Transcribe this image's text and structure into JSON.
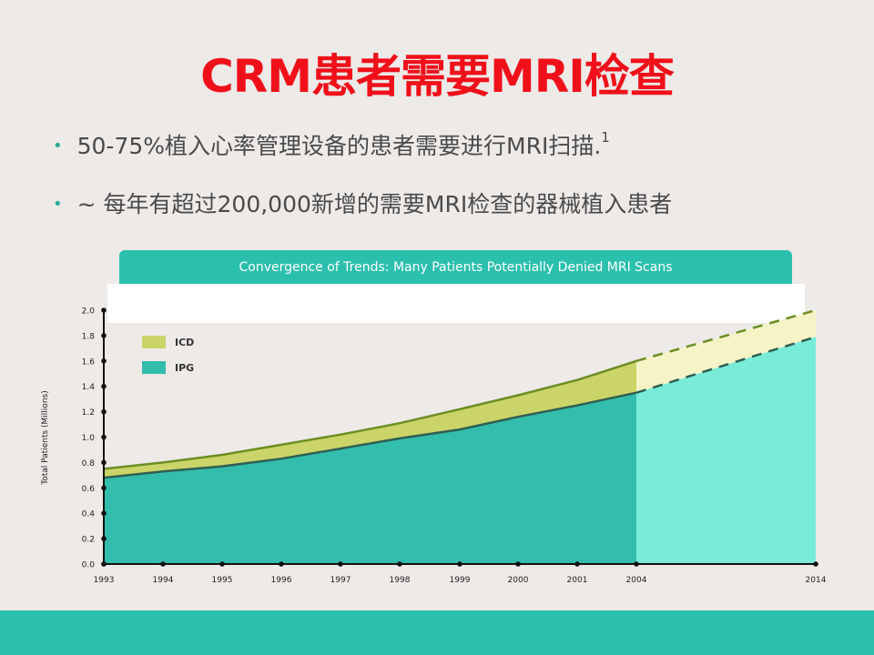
{
  "slide": {
    "title": "CRM患者需要MRI检查",
    "bullets": [
      {
        "text": "50-75%植入心率管理设备的患者需要进行MRI扫描.",
        "sup": "1"
      },
      {
        "text": "~ 每年有超过200,000新增的需要MRI检查的器械植入患者",
        "sup": ""
      }
    ]
  },
  "colors": {
    "title": "#f0101a",
    "accent": "#2bbfad",
    "ipg_actual": "#33bdac",
    "ipg_projected": "#78ecd8",
    "icd_actual": "#cbd468",
    "icd_projected": "#f6f4c7",
    "icd_line": "#6b8e23",
    "ipg_line": "#2f5f53"
  },
  "chart_data": {
    "type": "area",
    "title": "Convergence of Trends: Many Patients Potentially Denied MRI Scans",
    "ylabel": "Total Patients (Millions)",
    "xlabel": "",
    "ylim": [
      0,
      2.0
    ],
    "y_ticks": [
      "0.0",
      "0.2",
      "0.4",
      "0.6",
      "0.8",
      "1.0",
      "1.2",
      "1.4",
      "1.6",
      "1.8",
      "2.0"
    ],
    "x_labels": [
      "1993",
      "1994",
      "1995",
      "1996",
      "1997",
      "1998",
      "1999",
      "2000",
      "2001",
      "2004",
      "2014"
    ],
    "stacked": true,
    "projection_from": "2004",
    "legend": [
      {
        "name": "ICD"
      },
      {
        "name": "IPG"
      }
    ],
    "legend_position": "top-left",
    "grid": false,
    "series": [
      {
        "name": "IPG",
        "values": [
          0.68,
          0.73,
          0.77,
          0.83,
          0.91,
          0.99,
          1.06,
          1.16,
          1.25,
          1.35,
          1.79
        ]
      },
      {
        "name": "ICD",
        "values": [
          0.07,
          0.07,
          0.09,
          0.11,
          0.11,
          0.12,
          0.16,
          0.17,
          0.2,
          0.25,
          0.21
        ]
      }
    ]
  }
}
